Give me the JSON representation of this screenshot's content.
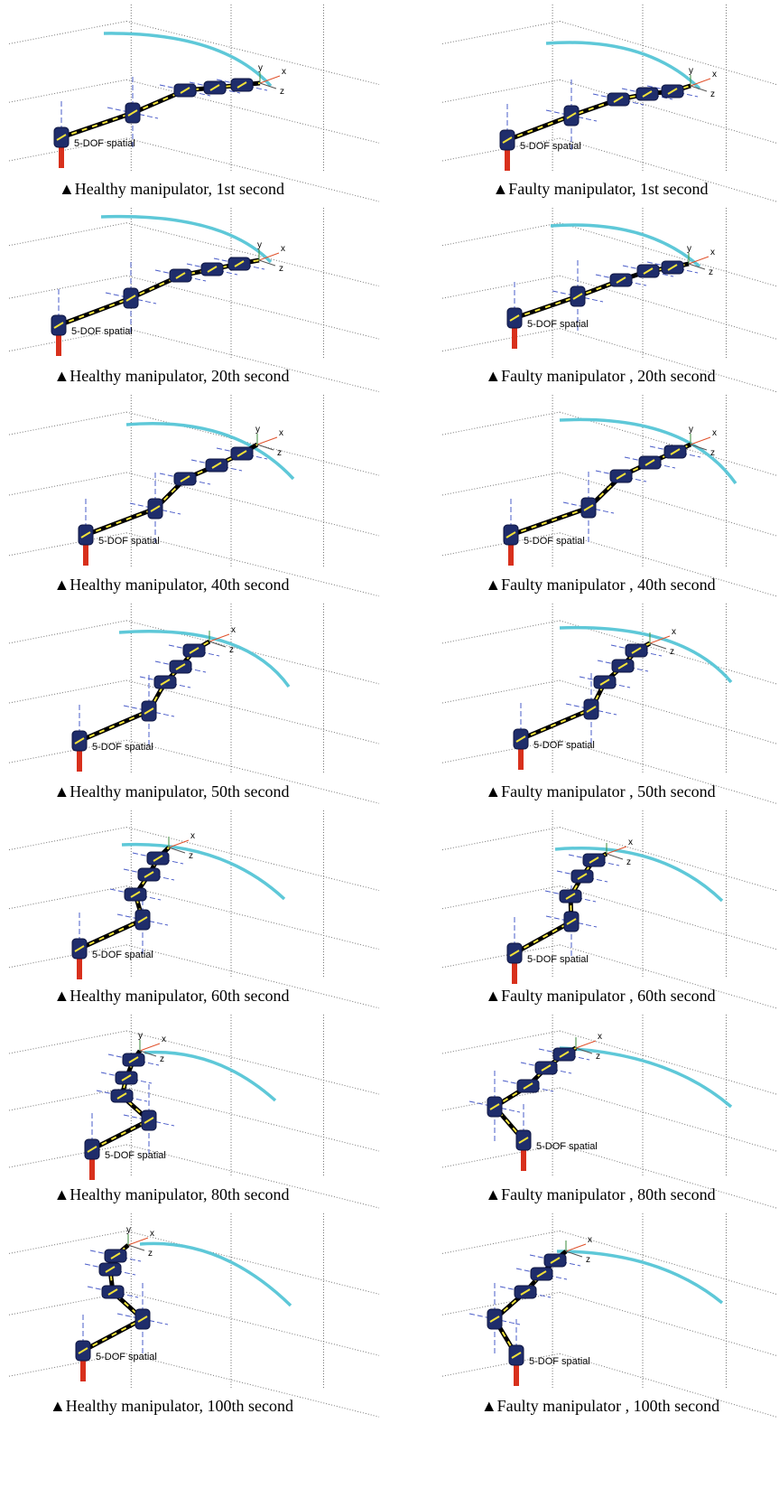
{
  "panels": [
    {
      "caption": "▲Healthy manipulator, 1st second",
      "label": "5-DOF spatial",
      "axes": [
        "x",
        "y",
        "z"
      ]
    },
    {
      "caption": "▲Faulty manipulator, 1st second",
      "label": "5-DOF spatial",
      "axes": [
        "x",
        "y",
        "z"
      ]
    },
    {
      "caption": "▲Healthy manipulator, 20th second",
      "label": "5-DOF spatial",
      "axes": [
        "x",
        "y",
        "z"
      ]
    },
    {
      "caption": "▲Faulty manipulator , 20th second",
      "label": "5-DOF spatial",
      "axes": [
        "x",
        "y",
        "z"
      ]
    },
    {
      "caption": "▲Healthy manipulator, 40th second",
      "label": "5-DOF spatial",
      "axes": [
        "x",
        "y",
        "z"
      ]
    },
    {
      "caption": "▲Faulty manipulator , 40th second",
      "label": "5-DOF spatial",
      "axes": [
        "x",
        "y",
        "z"
      ]
    },
    {
      "caption": "▲Healthy manipulator, 50th second",
      "label": "5-DOF spatial",
      "axes": [
        "x",
        "z"
      ]
    },
    {
      "caption": "▲Faulty manipulator , 50th second",
      "label": "5-DOF spatial",
      "axes": [
        "x",
        "z"
      ]
    },
    {
      "caption": "▲Healthy manipulator, 60th second",
      "label": "5-DOF spatial",
      "axes": [
        "x",
        "z"
      ]
    },
    {
      "caption": "▲Faulty manipulator , 60th second",
      "label": "5-DOF spatial",
      "axes": [
        "x",
        "z"
      ]
    },
    {
      "caption": "▲Healthy manipulator, 80th second",
      "label": "5-DOF spatial",
      "axes": [
        "x",
        "y",
        "z"
      ]
    },
    {
      "caption": "▲Faulty manipulator , 80th second",
      "label": "5-DOF spatial",
      "axes": [
        "x",
        "z"
      ]
    },
    {
      "caption": "▲Healthy manipulator, 100th second",
      "label": "5-DOF spatial",
      "axes": [
        "x",
        "y",
        "z"
      ]
    },
    {
      "caption": "▲Faulty manipulator , 100th second",
      "label": "5-DOF spatial",
      "axes": [
        "x",
        "z"
      ]
    }
  ]
}
